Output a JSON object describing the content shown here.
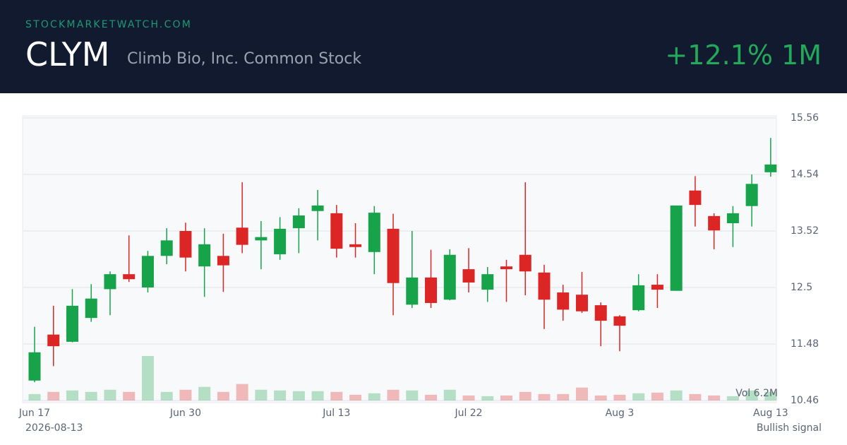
{
  "header": {
    "site": "STOCKMARKETWATCH.COM",
    "ticker": "CLYM",
    "name": "Climb Bio, Inc. Common Stock",
    "change": "+12.1% 1M"
  },
  "footer": {
    "date": "2026-08-13",
    "signal": "Bullish signal"
  },
  "chart_data": {
    "type": "candlestick",
    "categories": [
      "Jun 17",
      null,
      null,
      null,
      null,
      null,
      null,
      null,
      "Jun 30",
      null,
      null,
      null,
      null,
      null,
      null,
      null,
      "Jul 13",
      null,
      null,
      null,
      null,
      null,
      null,
      "Jul 22",
      null,
      null,
      null,
      null,
      null,
      null,
      null,
      "Aug 3",
      null,
      null,
      null,
      null,
      null,
      null,
      null,
      "Aug 13"
    ],
    "open": [
      10.82,
      11.65,
      11.52,
      11.95,
      12.47,
      12.74,
      12.5,
      13.07,
      13.52,
      12.88,
      13.07,
      13.58,
      13.35,
      13.1,
      13.57,
      13.88,
      13.84,
      13.28,
      13.14,
      13.56,
      12.19,
      12.68,
      12.28,
      12.83,
      12.46,
      12.88,
      13.09,
      12.77,
      12.41,
      12.37,
      12.18,
      11.98,
      12.09,
      12.55,
      12.44,
      14.25,
      13.79,
      13.66,
      13.97,
      14.58
    ],
    "high": [
      11.79,
      12.17,
      12.47,
      12.56,
      12.79,
      13.44,
      13.16,
      13.57,
      13.67,
      13.57,
      13.47,
      14.4,
      13.7,
      13.77,
      13.93,
      14.26,
      13.99,
      13.66,
      13.97,
      13.83,
      13.52,
      13.18,
      13.19,
      13.21,
      12.87,
      13.0,
      14.4,
      12.91,
      12.55,
      12.78,
      12.23,
      12.0,
      12.74,
      12.74,
      13.98,
      14.51,
      13.84,
      13.97,
      14.54,
      15.2
    ],
    "low": [
      10.79,
      11.08,
      11.51,
      11.88,
      12.0,
      12.6,
      12.41,
      12.92,
      12.79,
      12.33,
      12.42,
      13.12,
      12.83,
      13.0,
      13.12,
      13.35,
      13.04,
      13.04,
      12.74,
      12.0,
      12.13,
      12.13,
      12.27,
      12.41,
      12.24,
      12.24,
      12.36,
      11.75,
      11.9,
      12.04,
      11.44,
      11.35,
      12.07,
      12.13,
      12.44,
      13.6,
      13.19,
      13.23,
      13.6,
      14.5
    ],
    "close": [
      11.33,
      11.44,
      12.17,
      12.3,
      12.74,
      12.65,
      13.07,
      13.35,
      13.04,
      13.28,
      12.9,
      13.27,
      13.41,
      13.56,
      13.8,
      13.98,
      13.2,
      13.23,
      13.85,
      12.58,
      12.68,
      12.22,
      13.09,
      12.59,
      12.74,
      12.83,
      12.79,
      12.28,
      12.1,
      12.07,
      11.9,
      11.81,
      12.54,
      12.46,
      13.98,
      13.99,
      13.53,
      13.84,
      14.37,
      14.72
    ],
    "volume": [
      0.9,
      1.2,
      1.4,
      1.2,
      1.5,
      1.2,
      6.2,
      1.2,
      1.5,
      1.9,
      1.2,
      2.3,
      1.5,
      1.4,
      1.3,
      1.3,
      1.2,
      0.8,
      1.0,
      1.5,
      1.4,
      0.8,
      1.5,
      0.7,
      0.6,
      0.7,
      1.2,
      0.9,
      0.9,
      1.8,
      0.7,
      0.8,
      1.0,
      1.1,
      1.4,
      0.9,
      0.7,
      0.6,
      1.4,
      1.2
    ],
    "volume_label": "Vol 6.2M",
    "up_color": "#16a34a",
    "down_color": "#dc2626",
    "ylim": [
      10.46,
      15.56
    ],
    "yticks": [
      10.46,
      11.48,
      12.5,
      13.52,
      14.54,
      15.56
    ],
    "grid": true
  }
}
